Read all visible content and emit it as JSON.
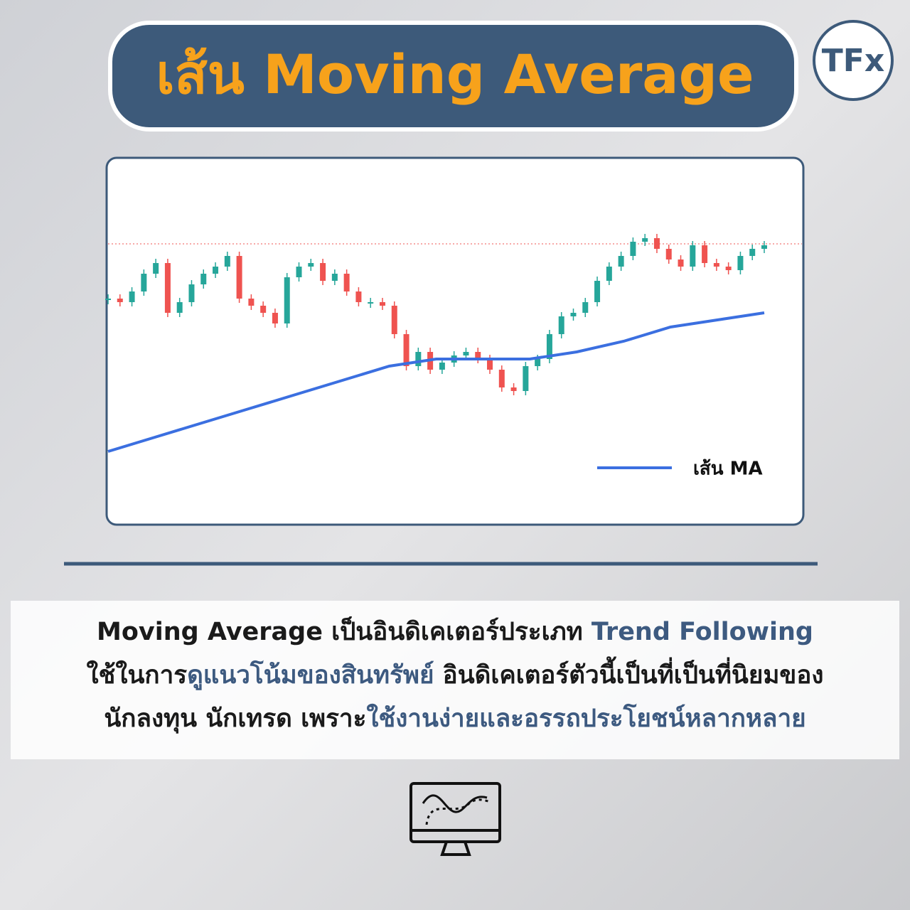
{
  "header": {
    "title": "เส้น Moving Average",
    "logo": "TFx"
  },
  "chart_data": {
    "type": "candlestick",
    "ylim": [
      0,
      100
    ],
    "up_color": "#26a69a",
    "down_color": "#ef5350",
    "closes": [
      62,
      61,
      64,
      69,
      72,
      58,
      61,
      66,
      69,
      71,
      74,
      62,
      60,
      58,
      55,
      68,
      71,
      72,
      67,
      69,
      64,
      61,
      61,
      60,
      52,
      43,
      47,
      42,
      44,
      46,
      47,
      45,
      42,
      37,
      36,
      43,
      45,
      52,
      57,
      58,
      61,
      67,
      71,
      74,
      78,
      79,
      76,
      73,
      71,
      77,
      72,
      71,
      70,
      74,
      76,
      77
    ],
    "last_price": 77.4,
    "last_price_color": "#ef5350",
    "series": [
      {
        "name": "เส้น MA",
        "color": "#3b6fe0",
        "values": [
          19,
          23,
          27,
          31,
          35,
          39,
          43,
          45,
          45,
          45,
          47,
          50,
          54,
          56,
          58
        ]
      }
    ]
  },
  "paragraph": {
    "lines": [
      [
        {
          "text": "Moving Average  เป็นอินดิเคเตอร์ประเภท ",
          "color": "#1a1a1a"
        },
        {
          "text": "Trend Following",
          "color": "#3d5a80"
        }
      ],
      [
        {
          "text": "ใช้ในการ",
          "color": "#1a1a1a"
        },
        {
          "text": "ดูแนวโน้มของสินทรัพย์",
          "color": "#3d5a80"
        },
        {
          "text": " อินดิเคเตอร์ตัวนี้เป็นที่เป็นที่นิยมของ",
          "color": "#1a1a1a"
        }
      ],
      [
        {
          "text": "นักลงทุน นักเทรด เพราะ",
          "color": "#1a1a1a"
        },
        {
          "text": "ใช้งานง่ายและอรรถประโยชน์หลากหลาย",
          "color": "#3d5a80"
        }
      ]
    ]
  }
}
